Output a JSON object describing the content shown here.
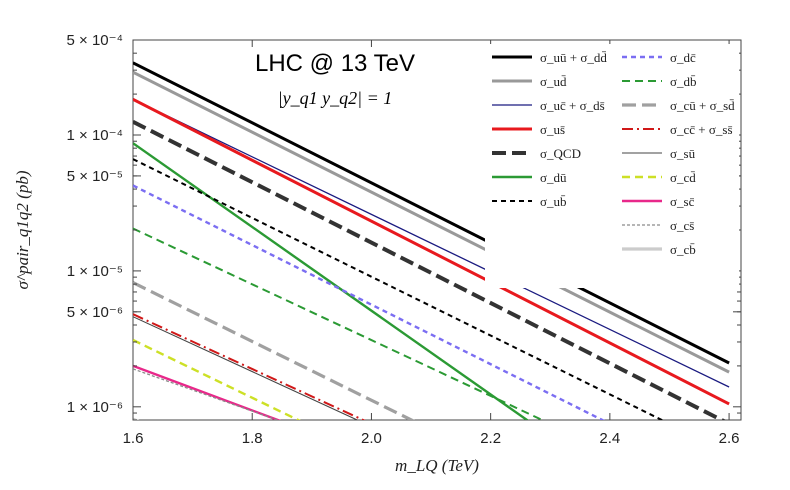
{
  "chart_data": {
    "type": "line",
    "title": "LHC @ 13 TeV",
    "subtitle": "|y_q1 y_q2| = 1",
    "xlabel": "m_LQ (TeV)",
    "ylabel": "σ^pair_q1q2 (pb)",
    "xlim": [
      1.6,
      2.62
    ],
    "ylim_log10": [
      -6.097,
      -3.301
    ],
    "x_ticks": [
      1.6,
      1.8,
      2.0,
      2.2,
      2.4,
      2.6
    ],
    "x_tick_labels": [
      "1.6",
      "1.8",
      "2.0",
      "2.2",
      "2.4",
      "2.6"
    ],
    "y_ticks": [
      0.0005,
      0.0001,
      5e-05,
      1e-05,
      5e-06,
      1e-06
    ],
    "y_tick_labels": [
      "5 × 10⁻⁴",
      "1 × 10⁻⁴",
      "5 × 10⁻⁵",
      "1 × 10⁻⁵",
      "5 × 10⁻⁶",
      "1 × 10⁻⁶"
    ],
    "series": [
      {
        "name": "σ_uū + σ_dd̄",
        "color": "#000000",
        "dash": "solid",
        "width": 3,
        "x": [
          1.6,
          2.6
        ],
        "y": [
          0.00034,
          2.1e-06
        ]
      },
      {
        "name": "σ_ud̄",
        "color": "#999999",
        "dash": "solid",
        "width": 3,
        "x": [
          1.6,
          2.6
        ],
        "y": [
          0.00029,
          1.8e-06
        ]
      },
      {
        "name": "σ_uc̄ + σ_ds̄",
        "color": "#1a1a80",
        "dash": "solid",
        "width": 1.3,
        "x": [
          1.6,
          2.6
        ],
        "y": [
          0.000183,
          1.4e-06
        ]
      },
      {
        "name": "σ_us̄",
        "color": "#e8191e",
        "dash": "solid",
        "width": 3,
        "x": [
          1.6,
          2.6
        ],
        "y": [
          0.000183,
          1.05e-06
        ]
      },
      {
        "name": "σ_QCD",
        "color": "#333333",
        "dash": "long",
        "width": 4,
        "x": [
          1.6,
          2.6
        ],
        "y": [
          0.000125,
          7.5e-07
        ]
      },
      {
        "name": "σ_dū",
        "color": "#2b9a34",
        "dash": "solid",
        "width": 2.4,
        "x": [
          1.6,
          2.27
        ],
        "y": [
          8.7e-05,
          7.5e-07
        ]
      },
      {
        "name": "σ_ub̄",
        "color": "#000000",
        "dash": "short",
        "width": 2,
        "x": [
          1.6,
          2.5
        ],
        "y": [
          6.65e-05,
          7.5e-07
        ]
      },
      {
        "name": "σ_dc̄",
        "color": "#7b6ef2",
        "dash": "short",
        "width": 2.4,
        "x": [
          1.6,
          2.4
        ],
        "y": [
          4.25e-05,
          7.5e-07
        ]
      },
      {
        "name": "σ_db̄",
        "color": "#2b9a34",
        "dash": "medium",
        "width": 2,
        "x": [
          1.6,
          2.3
        ],
        "y": [
          2.05e-05,
          7.5e-07
        ]
      },
      {
        "name": "σ_cū + σ_sd̄",
        "color": "#a0a0a0",
        "dash": "long",
        "width": 3.2,
        "x": [
          1.6,
          2.08
        ],
        "y": [
          8.2e-06,
          7.5e-07
        ]
      },
      {
        "name": "σ_cc̄ + σ_ss̄",
        "color": "#d01818",
        "dash": "dashdot",
        "width": 2,
        "x": [
          1.6,
          2.0
        ],
        "y": [
          4.8e-06,
          7.5e-07
        ]
      },
      {
        "name": "σ_sū",
        "color": "#444444",
        "dash": "solid",
        "width": 1.1,
        "x": [
          1.6,
          1.99
        ],
        "y": [
          4.6e-06,
          7.5e-07
        ]
      },
      {
        "name": "σ_cd̄",
        "color": "#cde026",
        "dash": "medium",
        "width": 2.4,
        "x": [
          1.6,
          1.89
        ],
        "y": [
          3.1e-06,
          7.5e-07
        ]
      },
      {
        "name": "σ_sc̄",
        "color": "#e8288a",
        "dash": "solid",
        "width": 2.4,
        "x": [
          1.6,
          1.86
        ],
        "y": [
          2e-06,
          7.5e-07
        ]
      },
      {
        "name": "σ_cs̄",
        "color": "#8a8a8a",
        "dash": "fine",
        "width": 1.3,
        "x": [
          1.6,
          1.86
        ],
        "y": [
          1.9e-06,
          7.5e-07
        ]
      },
      {
        "name": "σ_cb̄",
        "color": "#cccccc",
        "dash": "solid",
        "width": 3.2,
        "x": [
          1.6,
          1.62
        ],
        "y": [
          8.1e-07,
          7.5e-07
        ]
      }
    ]
  }
}
